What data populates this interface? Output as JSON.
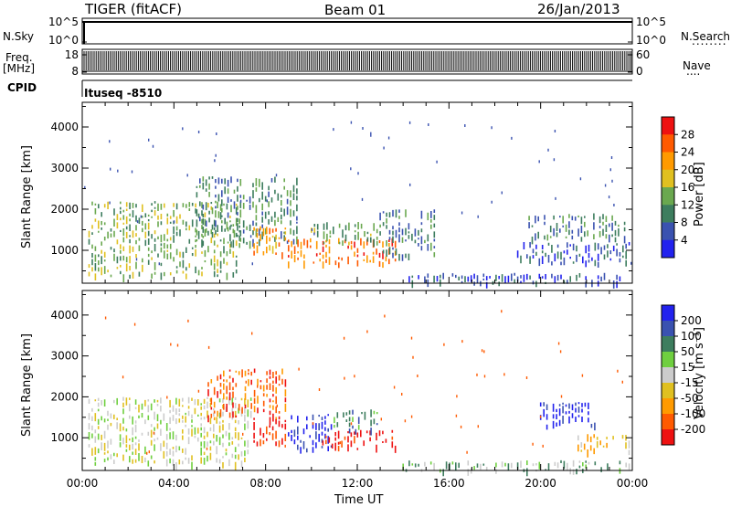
{
  "header": {
    "title": "TIGER (fitACF)",
    "beam": "Beam 01",
    "date": "26/Jan/2013"
  },
  "left_labels": {
    "nsky": "N.Sky",
    "freq": "Freq.",
    "freq_unit": "[MHz]",
    "cpid": "CPID"
  },
  "right_labels": {
    "nsearch": "N.Search",
    "nave": "Nave",
    "dots": "........"
  },
  "cpid_text": "Ituseq -8510",
  "colors": {
    "power": [
      "#2222ee",
      "#3a52b0",
      "#3d7d5e",
      "#6aa84f",
      "#e0c020",
      "#ff9a00",
      "#ff5a00",
      "#ee1111"
    ],
    "velocity": [
      "#ee1111",
      "#ff5a00",
      "#ff9a00",
      "#e0c020",
      "#cccccc",
      "#6fcf3f",
      "#3d7d5e",
      "#3a52b0",
      "#2222ee"
    ]
  },
  "chart_data": [
    {
      "type": "line",
      "panel": "N.Sky / N.Search",
      "left_ticks": [
        "10^5",
        "10^0"
      ],
      "right_ticks": [
        "10^5",
        "10^0"
      ]
    },
    {
      "type": "line",
      "panel": "Freq / Nave",
      "left_ticks": [
        "18",
        "8"
      ],
      "right_ticks": [
        "60",
        "0"
      ]
    },
    {
      "type": "heatmap",
      "panel": "Power",
      "ylabel": "Slant Range [km]",
      "y_ticks": [
        1000,
        2000,
        3000,
        4000
      ],
      "ylim": [
        200,
        4600
      ],
      "xlim": [
        0,
        24
      ],
      "colorbar_label": "Power [dB]",
      "colorbar_ticks": [
        "4",
        "8",
        "12",
        "16",
        "20",
        "24",
        "28"
      ],
      "regions": [
        {
          "t0": 0.3,
          "t1": 7.0,
          "r0": 400,
          "r1": 2200,
          "level": 3
        },
        {
          "t0": 5.0,
          "t1": 9.5,
          "r0": 1200,
          "r1": 2800,
          "level": 2
        },
        {
          "t0": 7.5,
          "t1": 9.0,
          "r0": 900,
          "r1": 1600,
          "level": 5
        },
        {
          "t0": 9.0,
          "t1": 13.8,
          "r0": 700,
          "r1": 1300,
          "level": 6
        },
        {
          "t0": 10.0,
          "t1": 13.0,
          "r0": 1200,
          "r1": 1700,
          "level": 3
        },
        {
          "t0": 13.0,
          "t1": 15.5,
          "r0": 900,
          "r1": 2000,
          "level": 2
        },
        {
          "t0": 14.0,
          "t1": 24.0,
          "r0": 220,
          "r1": 450,
          "level": 1
        },
        {
          "t0": 19.5,
          "t1": 23.8,
          "r0": 1300,
          "r1": 1900,
          "level": 2
        },
        {
          "t0": 19.0,
          "t1": 24.0,
          "r0": 700,
          "r1": 1200,
          "level": 1
        }
      ]
    },
    {
      "type": "heatmap",
      "panel": "Velocity",
      "ylabel": "Slant Range [km]",
      "y_ticks": [
        1000,
        2000,
        3000,
        4000
      ],
      "ylim": [
        200,
        4600
      ],
      "xlim": [
        0,
        24
      ],
      "xlabel": "Time UT",
      "x_ticks": [
        "00:00",
        "04:00",
        "08:00",
        "12:00",
        "16:00",
        "20:00",
        "00:00"
      ],
      "colorbar_label": "Velocity [m s⁻¹]",
      "colorbar_ticks": [
        "-200",
        "-100",
        "-50",
        "-15",
        "15",
        "50",
        "100",
        "200"
      ],
      "regions": [
        {
          "t0": 0.3,
          "t1": 7.5,
          "r0": 400,
          "r1": 2000,
          "level": 4
        },
        {
          "t0": 5.5,
          "t1": 9.0,
          "r0": 1500,
          "r1": 2700,
          "level": 1
        },
        {
          "t0": 7.5,
          "t1": 9.0,
          "r0": 900,
          "r1": 1500,
          "level": 0
        },
        {
          "t0": 9.0,
          "t1": 11.0,
          "r0": 700,
          "r1": 1600,
          "level": 8
        },
        {
          "t0": 10.5,
          "t1": 13.8,
          "r0": 750,
          "r1": 1200,
          "level": 0
        },
        {
          "t0": 11.0,
          "t1": 13.0,
          "r0": 1200,
          "r1": 1700,
          "level": 6
        },
        {
          "t0": 14.0,
          "t1": 24.0,
          "r0": 220,
          "r1": 450,
          "level": 5
        },
        {
          "t0": 20.0,
          "t1": 22.5,
          "r0": 1300,
          "r1": 1900,
          "level": 8
        },
        {
          "t0": 21.5,
          "t1": 24.0,
          "r0": 700,
          "r1": 1100,
          "level": 3
        }
      ]
    }
  ]
}
